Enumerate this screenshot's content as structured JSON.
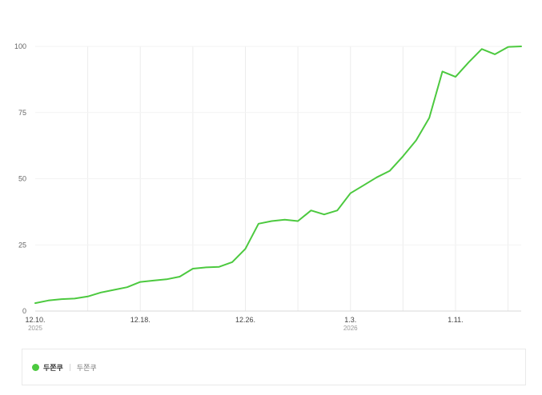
{
  "chart_data": {
    "type": "line",
    "ylim": [
      0,
      100
    ],
    "yticks": [
      0,
      25,
      50,
      75,
      100
    ],
    "x_count": 38,
    "xticks": [
      {
        "index": 0,
        "label": "12.10.",
        "sub": "2025"
      },
      {
        "index": 8,
        "label": "12.18.",
        "sub": ""
      },
      {
        "index": 16,
        "label": "12.26.",
        "sub": ""
      },
      {
        "index": 24,
        "label": "1.3.",
        "sub": "2026"
      },
      {
        "index": 32,
        "label": "1.11.",
        "sub": ""
      }
    ],
    "series": [
      {
        "name": "두쫀쿠",
        "color": "#4cc93f",
        "values": [
          3,
          4,
          4.5,
          4.7,
          5.5,
          7,
          8,
          9,
          11,
          11.5,
          12,
          13,
          16,
          16.5,
          16.7,
          18.5,
          23.5,
          33,
          34,
          34.5,
          34,
          38,
          36.5,
          38,
          44.5,
          47.5,
          50.5,
          53,
          58.5,
          64.5,
          73,
          90.5,
          88.5,
          94,
          99,
          97,
          99.8,
          100
        ]
      }
    ]
  },
  "legend": {
    "name": "두쫀쿠",
    "sub": "두쫀쿠",
    "color": "#4cc93f"
  }
}
